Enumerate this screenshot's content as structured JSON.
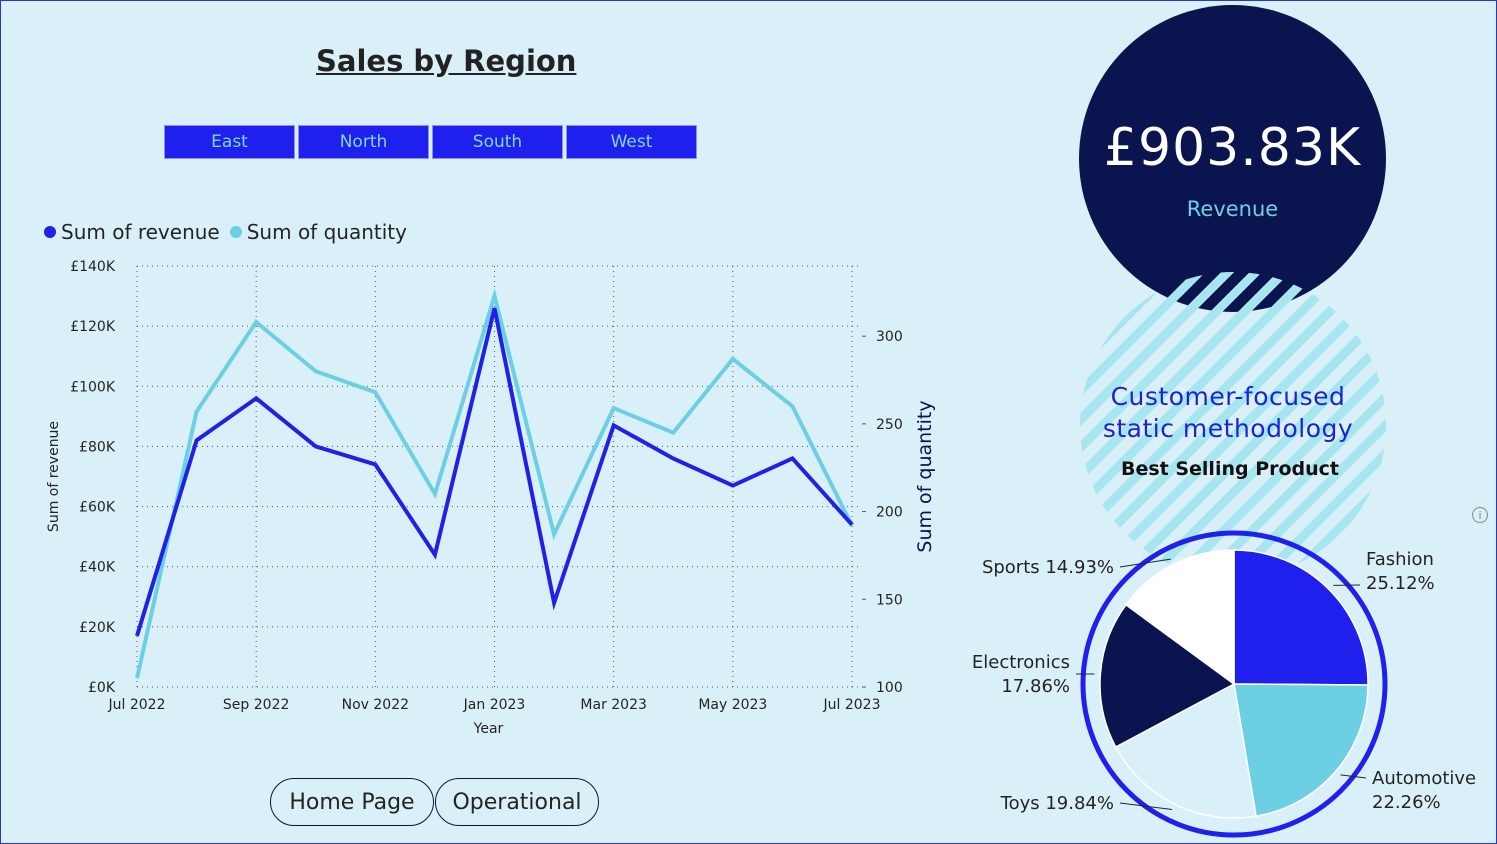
{
  "page": {
    "title": "Sales by Region"
  },
  "slicer": {
    "items": [
      "East",
      "North",
      "South",
      "West"
    ]
  },
  "nav": {
    "home": "Home Page",
    "operational": "Operational"
  },
  "kpi": {
    "value": "£903.83K",
    "label": "Revenue"
  },
  "tagline": {
    "line1": "Customer-focused",
    "line2": "static methodology"
  },
  "best_selling": {
    "title": "Best Selling Product"
  },
  "info_icon": "info-icon",
  "colors": {
    "revenue": "#2020e6",
    "quantity": "#6ccfe3",
    "navy": "#0a1550",
    "background": "#d9f0f8"
  },
  "chart_data": [
    {
      "type": "line",
      "xlabel": "Year",
      "ylabel_left": "Sum of revenue",
      "ylabel_right": "Sum of quantity",
      "legend": [
        "Sum of revenue",
        "Sum of quantity"
      ],
      "legend_position": "top-left",
      "grid": true,
      "x": [
        "2022-07",
        "2022-08",
        "2022-09",
        "2022-10",
        "2022-11",
        "2022-12",
        "2023-01",
        "2023-02",
        "2023-03",
        "2023-04",
        "2023-05",
        "2023-06",
        "2023-07"
      ],
      "x_tick_labels": [
        "Jul 2022",
        "Sep 2022",
        "Nov 2022",
        "Jan 2023",
        "Mar 2023",
        "May 2023",
        "Jul 2023"
      ],
      "y_left_ticks": [
        "£0K",
        "£20K",
        "£40K",
        "£60K",
        "£80K",
        "£100K",
        "£120K",
        "£140K"
      ],
      "y_left_lim": [
        0,
        140000
      ],
      "y_right_ticks": [
        "100",
        "150",
        "200",
        "250",
        "300"
      ],
      "y_right_lim": [
        100,
        340
      ],
      "series": [
        {
          "name": "Sum of revenue",
          "axis": "left",
          "values": [
            17000,
            82000,
            96000,
            80000,
            74000,
            44000,
            126000,
            28000,
            87000,
            76000,
            67000,
            76000,
            54000
          ]
        },
        {
          "name": "Sum of quantity",
          "axis": "right",
          "values": [
            105,
            257,
            308,
            280,
            268,
            210,
            323,
            187,
            259,
            245,
            287,
            260,
            192
          ]
        }
      ]
    },
    {
      "type": "pie",
      "slices": [
        {
          "label": "Fashion",
          "value": 25.12,
          "display": "25.12%",
          "color": "#2020ee"
        },
        {
          "label": "Automotive",
          "value": 22.26,
          "display": "22.26%",
          "color": "#6ccfe3"
        },
        {
          "label": "Toys",
          "value": 19.84,
          "display": "19.84%",
          "color": "#d9f0f8"
        },
        {
          "label": "Electronics",
          "value": 17.86,
          "display": "17.86%",
          "color": "#0a1550"
        },
        {
          "label": "Sports",
          "value": 14.93,
          "display": "14.93%",
          "color": "#ffffff"
        }
      ]
    }
  ]
}
